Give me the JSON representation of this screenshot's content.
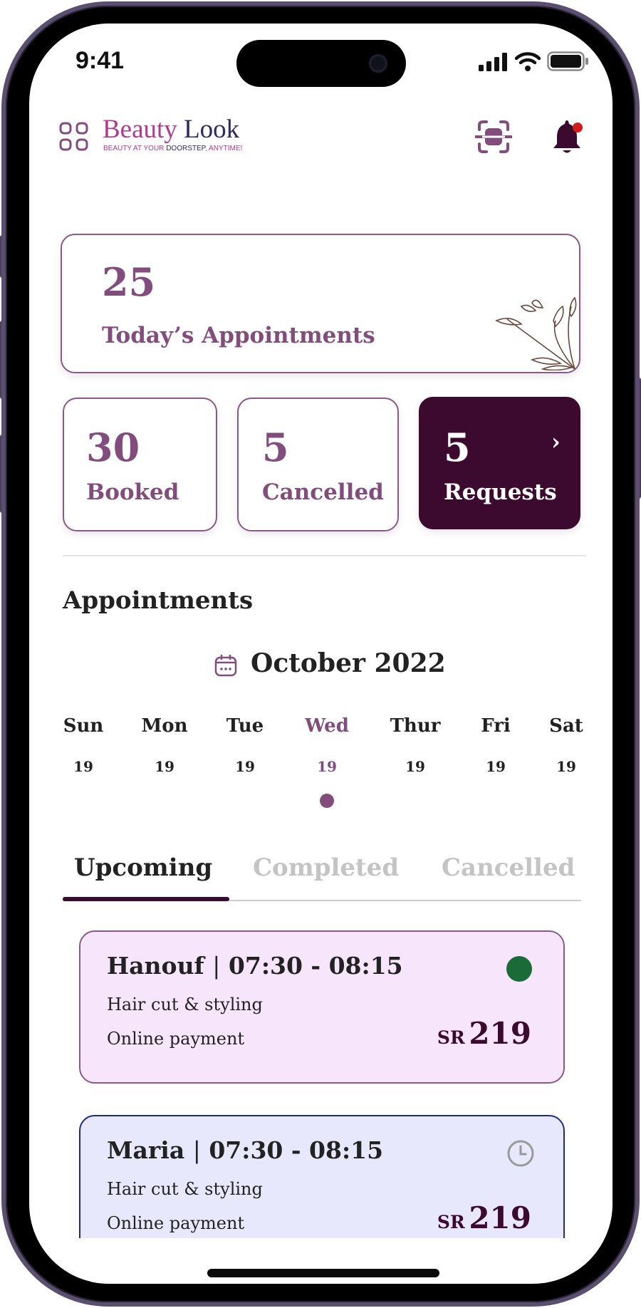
{
  "status_bar": {
    "time": "9:41"
  },
  "header": {
    "brand_part1": "Beauty",
    "brand_part2": "Look",
    "tagline_part1": "BEAUTY AT YOUR ",
    "tagline_part2": "DOORSTEP",
    "tagline_part3": ", ANYTIME!",
    "icons": [
      "grid-menu-icon",
      "scan-icon",
      "bell-icon"
    ]
  },
  "today": {
    "count": "25",
    "label": "Today’s Appointments"
  },
  "stats": [
    {
      "count": "30",
      "label": "Booked"
    },
    {
      "count": "5",
      "label": "Cancelled"
    },
    {
      "count": "5",
      "label": "Requests",
      "chevron": "›"
    }
  ],
  "appointments": {
    "heading": "Appointments",
    "month": "October 2022",
    "days": [
      {
        "name": "Sun",
        "date": "19"
      },
      {
        "name": "Mon",
        "date": "19"
      },
      {
        "name": "Tue",
        "date": "19"
      },
      {
        "name": "Wed",
        "date": "19",
        "selected": true
      },
      {
        "name": "Thur",
        "date": "19"
      },
      {
        "name": "Fri",
        "date": "19"
      },
      {
        "name": "Sat",
        "date": "19"
      }
    ],
    "tabs": [
      {
        "label": "Upcoming",
        "active": true
      },
      {
        "label": "Completed"
      },
      {
        "label": "Cancelled"
      }
    ],
    "items": [
      {
        "name": "Hanouf",
        "sep": "|",
        "time": "07:30 - 08:15",
        "service": "Hair cut & styling",
        "payment": "Online payment",
        "currency": "SR",
        "amount": "219",
        "status": "confirmed"
      },
      {
        "name": "Maria",
        "sep": "|",
        "time": "07:30 - 08:15",
        "service": "Hair cut & styling",
        "payment": "Online payment",
        "currency": "SR",
        "amount": "219",
        "status": "pending"
      }
    ]
  },
  "colors": {
    "primary": "#824d7d",
    "dark": "#3d0a2f",
    "brand_pink": "#b03a8e",
    "brand_navy": "#2d2a5e",
    "status_green": "#1b6b38",
    "notification_red": "#d21a1a"
  }
}
